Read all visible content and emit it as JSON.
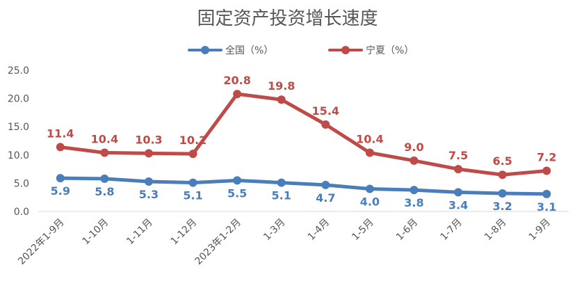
{
  "chart_data": {
    "type": "line",
    "title": "固定资产投资增长速度",
    "categories": [
      "2022年1-9月",
      "1-10月",
      "1-11月",
      "1-12月",
      "2023年1-2月",
      "1-3月",
      "1-4月",
      "1-5月",
      "1-6月",
      "1-7月",
      "1-8月",
      "1-9月"
    ],
    "series": [
      {
        "name": "全国（%）",
        "color": "#4a7ebb",
        "values": [
          5.9,
          5.8,
          5.3,
          5.1,
          5.5,
          5.1,
          4.7,
          4.0,
          3.8,
          3.4,
          3.2,
          3.1
        ],
        "labels": [
          "5.9",
          "5.8",
          "5.3",
          "5.1",
          "5.5",
          "5.1",
          "4.7",
          "4.0",
          "3.8",
          "3.4",
          "3.2",
          "3.1"
        ]
      },
      {
        "name": "宁夏（%）",
        "color": "#be4b48",
        "values": [
          11.4,
          10.4,
          10.3,
          10.2,
          20.8,
          19.8,
          15.4,
          10.4,
          9.0,
          7.5,
          6.5,
          7.2
        ],
        "labels": [
          "11.4",
          "10.4",
          "10.3",
          "10.2",
          "20.8",
          "19.8",
          "15.4",
          "10.4",
          "9.0",
          "7.5",
          "6.5",
          "7.2"
        ]
      }
    ],
    "ylim": [
      0,
      25
    ],
    "yticks": [
      "0.0",
      "5.0",
      "10.0",
      "15.0",
      "20.0",
      "25.0"
    ],
    "grid": false,
    "legend_position": "top"
  }
}
